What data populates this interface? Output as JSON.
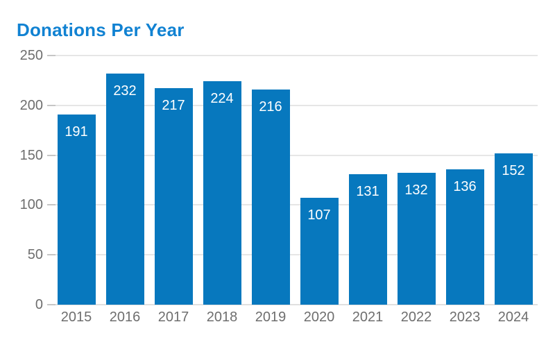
{
  "title": "Donations Per Year",
  "colors": {
    "title": "#1182d2",
    "bar": "#0778be",
    "bar_label": "#ffffff",
    "axis_label": "#6e6e6e",
    "gridline": "#e6e6e6",
    "baseline": "#e0e0e0",
    "tick": "#c6c6c6",
    "background": "#ffffff"
  },
  "chart_data": {
    "type": "bar",
    "title": "Donations Per Year",
    "categories": [
      "2015",
      "2016",
      "2017",
      "2018",
      "2019",
      "2020",
      "2021",
      "2022",
      "2023",
      "2024"
    ],
    "values": [
      191,
      232,
      217,
      224,
      216,
      107,
      131,
      132,
      136,
      152
    ],
    "xlabel": "",
    "ylabel": "",
    "ylim": [
      0,
      250
    ],
    "yticks": [
      0,
      50,
      100,
      150,
      200,
      250
    ],
    "grid": true,
    "legend": false,
    "bar_labels": true,
    "bar_label_position": "inside-top"
  }
}
